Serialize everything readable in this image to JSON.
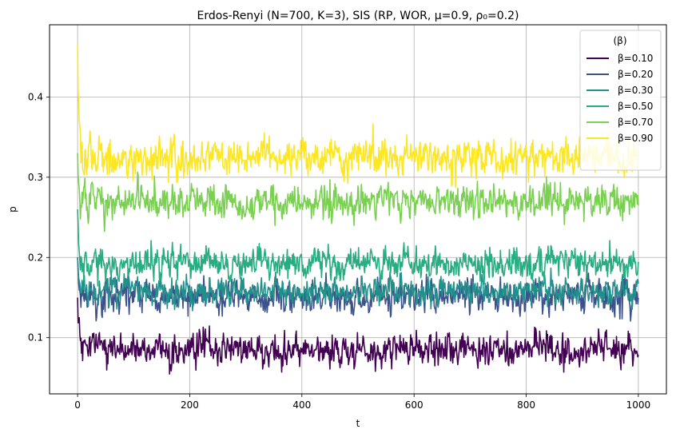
{
  "chart_data": {
    "type": "line",
    "title": "Erdos-Renyi (N=700, K=3), SIS (RP, WOR, μ=0.9, ρ₀=0.2)",
    "xlabel": "t",
    "ylabel": "p",
    "xlim": [
      -50,
      1050
    ],
    "ylim": [
      0.03,
      0.49
    ],
    "xticks": [
      0,
      200,
      400,
      600,
      800,
      1000
    ],
    "xtick_labels": [
      "0",
      "200",
      "400",
      "600",
      "800",
      "1000"
    ],
    "yticks": [
      0.1,
      0.2,
      0.3,
      0.4
    ],
    "ytick_labels": [
      "0.1",
      "0.2",
      "0.3",
      "0.4"
    ],
    "grid": true,
    "legend": {
      "title": "(β)",
      "placement": "upper right"
    },
    "series": [
      {
        "name": "β=0.10",
        "color": "#440154",
        "start": 0.15,
        "mean": 0.085,
        "noise": 0.009,
        "x": [
          0,
          100,
          200,
          300,
          400,
          500,
          600,
          700,
          800,
          900,
          1000
        ],
        "y": [
          0.15,
          0.085,
          0.086,
          0.084,
          0.085,
          0.086,
          0.084,
          0.085,
          0.086,
          0.085,
          0.083
        ]
      },
      {
        "name": "β=0.20",
        "color": "#3b528b",
        "start": 0.2,
        "mean": 0.152,
        "noise": 0.01,
        "x": [
          0,
          100,
          200,
          300,
          400,
          500,
          600,
          700,
          800,
          900,
          1000
        ],
        "y": [
          0.2,
          0.152,
          0.151,
          0.153,
          0.152,
          0.151,
          0.152,
          0.153,
          0.151,
          0.152,
          0.15
        ]
      },
      {
        "name": "β=0.30",
        "color": "#21918c",
        "start": 0.2,
        "mean": 0.158,
        "noise": 0.008,
        "x": [
          0,
          100,
          200,
          300,
          400,
          500,
          600,
          700,
          800,
          900,
          1000
        ],
        "y": [
          0.2,
          0.158,
          0.159,
          0.157,
          0.158,
          0.159,
          0.158,
          0.157,
          0.159,
          0.158,
          0.16
        ]
      },
      {
        "name": "β=0.50",
        "color": "#27ad81",
        "start": 0.26,
        "mean": 0.193,
        "noise": 0.009,
        "x": [
          0,
          100,
          200,
          300,
          400,
          500,
          600,
          700,
          800,
          900,
          1000
        ],
        "y": [
          0.26,
          0.193,
          0.194,
          0.192,
          0.193,
          0.194,
          0.193,
          0.192,
          0.194,
          0.193,
          0.19
        ]
      },
      {
        "name": "β=0.70",
        "color": "#7ad151",
        "start": 0.33,
        "mean": 0.27,
        "noise": 0.01,
        "x": [
          0,
          100,
          200,
          300,
          400,
          500,
          600,
          700,
          800,
          900,
          1000
        ],
        "y": [
          0.33,
          0.27,
          0.271,
          0.269,
          0.27,
          0.271,
          0.27,
          0.269,
          0.271,
          0.27,
          0.28
        ]
      },
      {
        "name": "β=0.90",
        "color": "#fde725",
        "start": 0.465,
        "mean": 0.325,
        "noise": 0.011,
        "x": [
          0,
          100,
          200,
          300,
          400,
          500,
          600,
          700,
          800,
          900,
          1000
        ],
        "y": [
          0.465,
          0.325,
          0.326,
          0.324,
          0.325,
          0.326,
          0.325,
          0.324,
          0.326,
          0.325,
          0.32
        ]
      }
    ]
  }
}
